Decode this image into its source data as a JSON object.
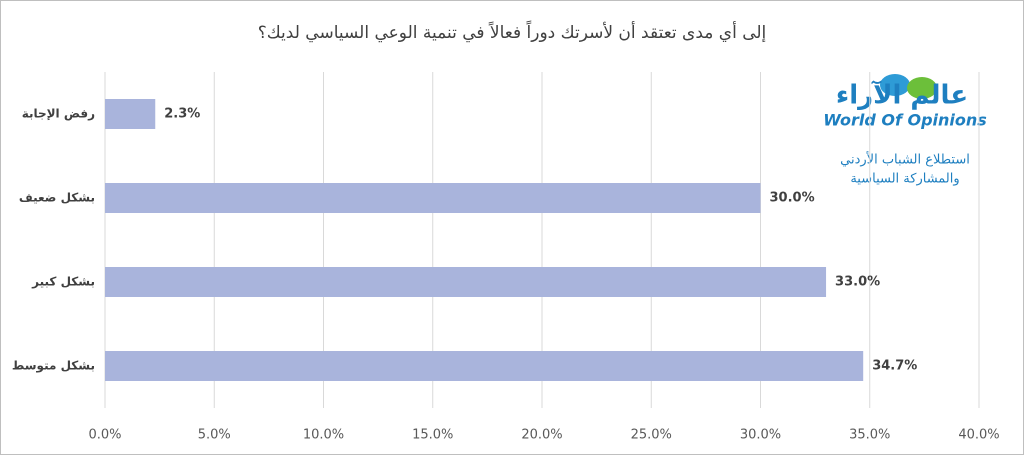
{
  "chart_data": {
    "type": "bar",
    "orientation": "horizontal",
    "title": "إلى أي مدى تعتقد أن لأسرتك دوراً فعالاً في تنمية  الوعي السياسي لديك؟",
    "categories": [
      "رفض الإجابة",
      "بشكل ضعيف",
      "بشكل كبير",
      "بشكل متوسط"
    ],
    "values": [
      2.3,
      30.0,
      33.0,
      34.7
    ],
    "value_labels": [
      "2.3%",
      "30.0%",
      "33.0%",
      "34.7%"
    ],
    "color": "#a9b4dc",
    "xlim": [
      0,
      40
    ],
    "xticks": [
      {
        "value": 0,
        "label": "0.0%"
      },
      {
        "value": 5,
        "label": "5.0%"
      },
      {
        "value": 10,
        "label": "10.0%"
      },
      {
        "value": 15,
        "label": "15.0%"
      },
      {
        "value": 20,
        "label": "20.0%"
      },
      {
        "value": 25,
        "label": "25.0%"
      },
      {
        "value": 30,
        "label": "30.0%"
      },
      {
        "value": 35,
        "label": "35.0%"
      },
      {
        "value": 40,
        "label": "40.0%"
      }
    ],
    "grid": true,
    "annotations": [
      "عالم الآراء",
      "World Of Opinions",
      "استطلاع الشباب الأردني",
      "والمشاركة السياسية"
    ]
  }
}
